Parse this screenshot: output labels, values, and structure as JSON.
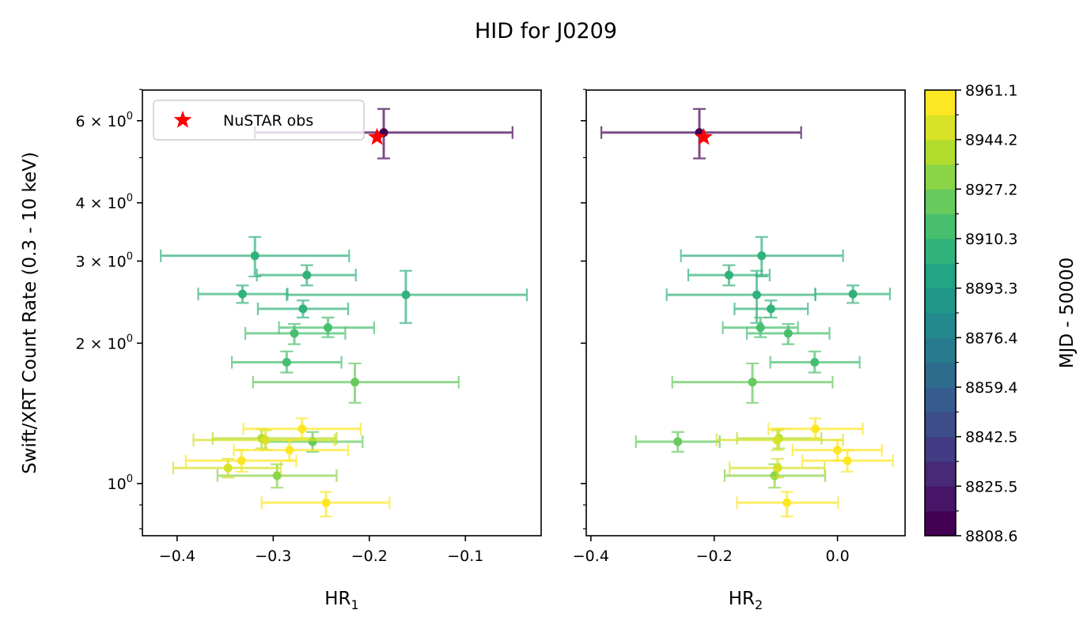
{
  "chart_data": {
    "type": "scatter",
    "title": "HID for J0209",
    "ylabel": "Swift/XRT Count Rate (0.3 - 10 keV)",
    "yscale": "log",
    "ylim": [
      0.773,
      6.98
    ],
    "y_ticks": [
      {
        "value": 6,
        "label_base": "6 × 10",
        "label_exp": "0"
      },
      {
        "value": 4,
        "label_base": "4 × 10",
        "label_exp": "0"
      },
      {
        "value": 3,
        "label_base": "3 × 10",
        "label_exp": "0"
      },
      {
        "value": 2,
        "label_base": "2 × 10",
        "label_exp": "0"
      },
      {
        "value": 1,
        "label_base": "10",
        "label_exp": "0"
      }
    ],
    "y_minor_ticks": [
      0.8,
      0.9,
      5,
      7
    ],
    "panels": [
      {
        "xlabel_main": "HR",
        "xlabel_sub": "1",
        "xlim": [
          -0.4361,
          -0.0212
        ],
        "x_ticks": [
          {
            "value": -0.4,
            "label": "−0.4"
          },
          {
            "value": -0.3,
            "label": "−0.3"
          },
          {
            "value": -0.2,
            "label": "−0.2"
          },
          {
            "value": -0.1,
            "label": "−0.1"
          }
        ],
        "show_y_labels": true
      },
      {
        "xlabel_main": "HR",
        "xlabel_sub": "2",
        "xlim": [
          -0.4075,
          0.1096
        ],
        "x_ticks": [
          {
            "value": -0.4,
            "label": "−0.4"
          },
          {
            "value": -0.2,
            "label": "−0.2"
          },
          {
            "value": 0.0,
            "label": "0.0"
          }
        ],
        "show_y_labels": false
      }
    ],
    "points": [
      {
        "mjd": 8808.6,
        "rate": 5.66,
        "rate_lo": 4.98,
        "rate_hi": 6.36,
        "hr1": -0.185,
        "hr1_lo": -0.319,
        "hr1_hi": -0.051,
        "hr2": -0.224,
        "hr2_lo": -0.383,
        "hr2_hi": -0.059
      },
      {
        "mjd": 8905.0,
        "rate": 3.08,
        "rate_lo": 2.78,
        "rate_hi": 3.38,
        "hr1": -0.319,
        "hr1_lo": -0.417,
        "hr1_hi": -0.221,
        "hr2": -0.123,
        "hr2_lo": -0.254,
        "hr2_hi": 0.009
      },
      {
        "mjd": 8903.0,
        "rate": 2.8,
        "rate_lo": 2.66,
        "rate_hi": 2.94,
        "hr1": -0.265,
        "hr1_lo": -0.317,
        "hr1_hi": -0.214,
        "hr2": -0.176,
        "hr2_lo": -0.242,
        "hr2_hi": -0.11
      },
      {
        "mjd": 8902.0,
        "rate": 2.55,
        "rate_lo": 2.44,
        "rate_hi": 2.66,
        "hr1": -0.332,
        "hr1_lo": -0.378,
        "hr1_hi": -0.285,
        "hr2": 0.025,
        "hr2_lo": -0.036,
        "hr2_hi": 0.085
      },
      {
        "mjd": 8906.0,
        "rate": 2.54,
        "rate_lo": 2.21,
        "rate_hi": 2.86,
        "hr1": -0.162,
        "hr1_lo": -0.286,
        "hr1_hi": -0.036,
        "hr2": -0.131,
        "hr2_lo": -0.277,
        "hr2_hi": -0.036
      },
      {
        "mjd": 8904.0,
        "rate": 2.37,
        "rate_lo": 2.27,
        "rate_hi": 2.47,
        "hr1": -0.269,
        "hr1_lo": -0.316,
        "hr1_hi": -0.222,
        "hr2": -0.108,
        "hr2_lo": -0.167,
        "hr2_hi": -0.048
      },
      {
        "mjd": 8914.0,
        "rate": 2.16,
        "rate_lo": 2.06,
        "rate_hi": 2.27,
        "hr1": -0.243,
        "hr1_lo": -0.294,
        "hr1_hi": -0.195,
        "hr2": -0.125,
        "hr2_lo": -0.186,
        "hr2_hi": -0.064
      },
      {
        "mjd": 8912.0,
        "rate": 2.1,
        "rate_lo": 1.99,
        "rate_hi": 2.2,
        "hr1": -0.278,
        "hr1_lo": -0.329,
        "hr1_hi": -0.225,
        "hr2": -0.08,
        "hr2_lo": -0.147,
        "hr2_hi": -0.013
      },
      {
        "mjd": 8913.0,
        "rate": 1.82,
        "rate_lo": 1.73,
        "rate_hi": 1.92,
        "hr1": -0.286,
        "hr1_lo": -0.343,
        "hr1_hi": -0.229,
        "hr2": -0.037,
        "hr2_lo": -0.109,
        "hr2_hi": 0.036
      },
      {
        "mjd": 8925.0,
        "rate": 1.65,
        "rate_lo": 1.49,
        "rate_hi": 1.81,
        "hr1": -0.215,
        "hr1_lo": -0.321,
        "hr1_hi": -0.107,
        "hr2": -0.138,
        "hr2_lo": -0.268,
        "hr2_hi": -0.008
      },
      {
        "mjd": 8960.0,
        "rate": 1.31,
        "rate_lo": 1.25,
        "rate_hi": 1.38,
        "hr1": -0.27,
        "hr1_lo": -0.331,
        "hr1_hi": -0.209,
        "hr2": -0.036,
        "hr2_lo": -0.112,
        "hr2_hi": 0.041
      },
      {
        "mjd": 8942.0,
        "rate": 1.25,
        "rate_lo": 1.19,
        "rate_hi": 1.31,
        "hr1": -0.312,
        "hr1_lo": -0.363,
        "hr1_hi": -0.234,
        "hr2": -0.095,
        "hr2_lo": -0.163,
        "hr2_hi": -0.026
      },
      {
        "mjd": 8950.0,
        "rate": 1.24,
        "rate_lo": 1.18,
        "rate_hi": 1.3,
        "hr1": -0.308,
        "hr1_lo": -0.383,
        "hr1_hi": -0.236,
        "hr2": -0.098,
        "hr2_lo": -0.196,
        "hr2_hi": 0.009
      },
      {
        "mjd": 8920.0,
        "rate": 1.23,
        "rate_lo": 1.17,
        "rate_hi": 1.29,
        "hr1": -0.259,
        "hr1_lo": -0.308,
        "hr1_hi": -0.207,
        "hr2": -0.259,
        "hr2_lo": -0.327,
        "hr2_hi": -0.191
      },
      {
        "mjd": 8958.0,
        "rate": 1.18,
        "rate_lo": 1.12,
        "rate_hi": 1.24,
        "hr1": -0.283,
        "hr1_lo": -0.341,
        "hr1_hi": -0.222,
        "hr2": 0.0,
        "hr2_lo": -0.073,
        "hr2_hi": 0.072
      },
      {
        "mjd": 8961.1,
        "rate": 1.12,
        "rate_lo": 1.06,
        "rate_hi": 1.18,
        "hr1": -0.333,
        "hr1_lo": -0.391,
        "hr1_hi": -0.276,
        "hr2": 0.016,
        "hr2_lo": -0.057,
        "hr2_hi": 0.09
      },
      {
        "mjd": 8945.0,
        "rate": 1.08,
        "rate_lo": 1.03,
        "rate_hi": 1.13,
        "hr1": -0.347,
        "hr1_lo": -0.404,
        "hr1_hi": -0.292,
        "hr2": -0.097,
        "hr2_lo": -0.175,
        "hr2_hi": -0.021
      },
      {
        "mjd": 8935.0,
        "rate": 1.04,
        "rate_lo": 0.98,
        "rate_hi": 1.1,
        "hr1": -0.296,
        "hr1_lo": -0.358,
        "hr1_hi": -0.234,
        "hr2": -0.102,
        "hr2_lo": -0.183,
        "hr2_hi": -0.02
      },
      {
        "mjd": 8959.0,
        "rate": 0.91,
        "rate_lo": 0.85,
        "rate_hi": 0.96,
        "hr1": -0.245,
        "hr1_lo": -0.312,
        "hr1_hi": -0.179,
        "hr2": -0.082,
        "hr2_lo": -0.163,
        "hr2_hi": 0.001
      }
    ],
    "nustar": {
      "label": "NuSTAR obs",
      "color": "#ff0000",
      "hr1": -0.192,
      "hr2": -0.217,
      "rate": 5.53
    },
    "legend": {
      "entries": [
        "NuSTAR obs"
      ],
      "placement": "upper-left"
    },
    "colorbar": {
      "label": "MJD - 50000",
      "cmap": "viridis",
      "vmin": 8808.6,
      "vmax": 8961.1,
      "n_bands": 18,
      "tick_labels": [
        "8808.6",
        "8825.5",
        "8842.5",
        "8859.4",
        "8876.4",
        "8893.3",
        "8910.3",
        "8927.2",
        "8944.2",
        "8961.1"
      ]
    },
    "errorbar_alpha": 0.7,
    "grid": false
  }
}
